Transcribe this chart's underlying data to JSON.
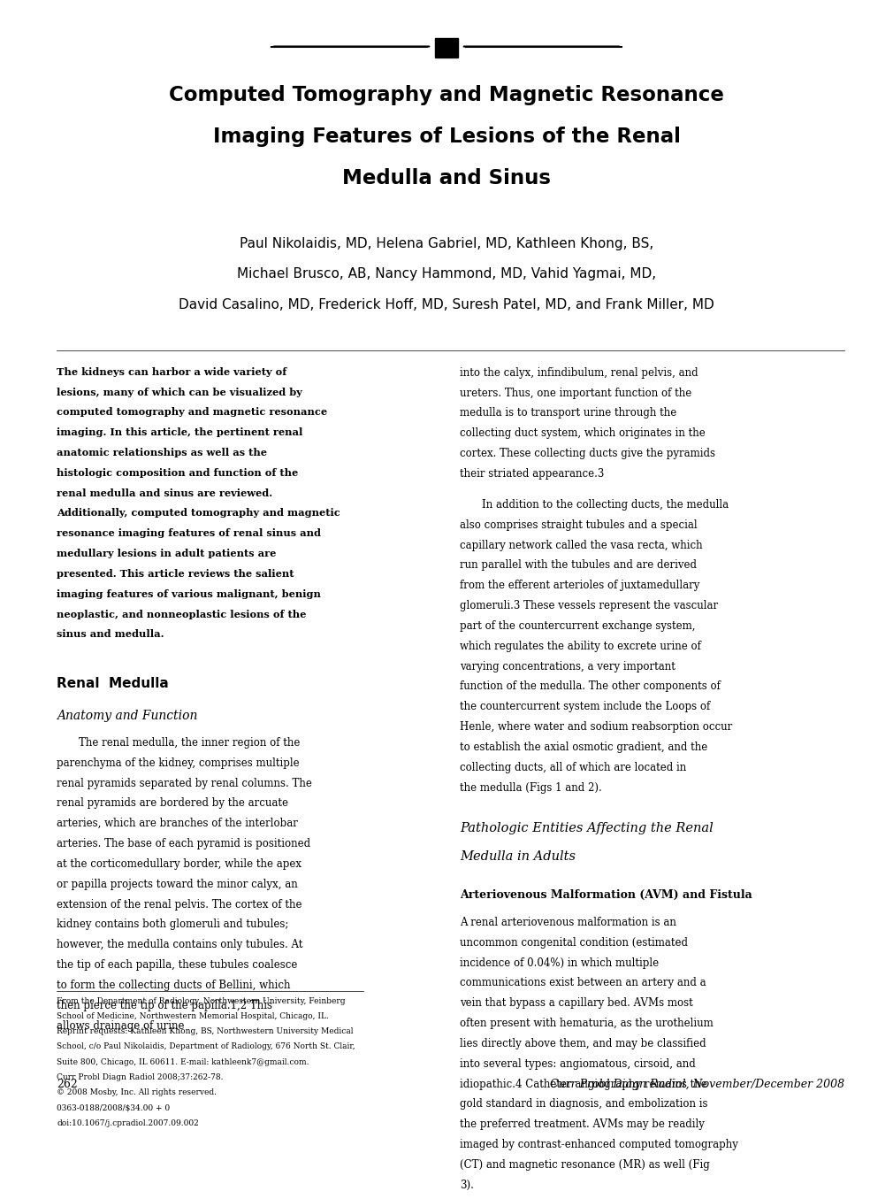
{
  "bg_color": "#ffffff",
  "page_width": 9.9,
  "page_height": 13.2,
  "dpi": 100,
  "title_lines": [
    "Computed Tomography and Magnetic Resonance",
    "Imaging Features of Lesions of the Renal",
    "Medulla and Sinus"
  ],
  "authors_lines": [
    "Paul Nikolaidis, MD, Helena Gabriel, MD, Kathleen Khong, BS,",
    "Michael Brusco, AB, Nancy Hammond, MD, Vahid Yagmai, MD,",
    "David Casalino, MD, Frederick Hoff, MD, Suresh Patel, MD, and Frank Miller, MD"
  ],
  "abstract_bold": "The kidneys can harbor a wide variety of lesions, many of which can be visualized by computed tomography and magnetic resonance imaging. In this article, the pertinent renal anatomic relationships as well as the histologic composition and function of the renal medulla and sinus are reviewed. Additionally, computed tomography and magnetic resonance imaging features of renal sinus and medullary lesions in adult patients are presented. This article reviews the salient imaging features of various malignant, benign neoplastic, and nonneoplastic lesions of the sinus and medulla.",
  "section1_heading": "Renal  Medulla",
  "section1_subheading": "Anatomy and Function",
  "section1_body": "The renal medulla, the inner region of the parenchyma of the kidney, comprises multiple renal pyramids separated by renal columns. The renal pyramids are bordered by the arcuate arteries, which are branches of the interlobar arteries. The base of each pyramid is positioned at the corticomedullary border, while the apex or papilla projects toward the minor calyx, an extension of the renal pelvis. The cortex of the kidney contains both glomeruli and tubules; however, the medulla contains only tubules. At the tip of each papilla, these tubules coalesce to form the collecting ducts of Bellini, which then pierce the tip of the papilla.1,2 This allows drainage of urine",
  "right_col_para1": "into the calyx, infindibulum, renal pelvis, and ureters. Thus, one important function of the medulla is to transport urine through the collecting duct system, which originates in the cortex. These collecting ducts give the pyramids their striated appearance.3",
  "right_col_para2": "In addition to the collecting ducts, the medulla also comprises straight tubules and a special capillary network called the vasa recta, which run parallel with the tubules and are derived from the efferent arterioles of juxtamedullary glomeruli.3 These vessels represent the vascular part of the countercurrent exchange system, which regulates the ability to excrete urine of varying concentrations, a very important function of the medulla. The other components of the countercurrent system include the Loops of Henle, where water and sodium reabsorption occur to establish the axial osmotic gradient, and the collecting ducts, all of which are located in the medulla (Figs 1 and 2).",
  "section2_heading_italic": "Pathologic Entities Affecting the Renal Medulla in Adults",
  "section2_subheading": "Arteriovenous Malformation (AVM) and Fistula",
  "section2_body": "A renal arteriovenous malformation is an uncommon congenital condition (estimated incidence of 0.04%) in which multiple communications exist between an artery and a vein that bypass a capillary bed. AVMs most often present with hematuria, as the urothelium lies directly above them, and may be classified into several types: angiomatous, cirsoid, and idiopathic.4 Catheter angiography remains the gold standard in diagnosis, and embolization is the preferred treatment. AVMs may be readily imaged by contrast-enhanced computed tomography (CT) and magnetic resonance (MR) as well (Fig 3).",
  "footnote_lines": [
    "From the Department of Radiology, Northwestern University, Feinberg",
    "School of Medicine, Northwestern Memorial Hospital, Chicago, IL.",
    "Reprint requests: Kathleen Khong, BS, Northwestern University Medical",
    "School, c/o Paul Nikolaidis, Department of Radiology, 676 North St. Clair,",
    "Suite 800, Chicago, IL 60611. E-mail: kathleenk7@gmail.com.",
    "Curr Probl Diagn Radiol 2008;37:262-78.",
    "© 2008 Mosby, Inc. All rights reserved.",
    "0363-0188/2008/$34.00 + 0",
    "doi:10.1067/j.cpradiol.2007.09.002"
  ],
  "page_num": "262",
  "journal_ref": "Curr Probl Diagn Radiol, November/December 2008"
}
